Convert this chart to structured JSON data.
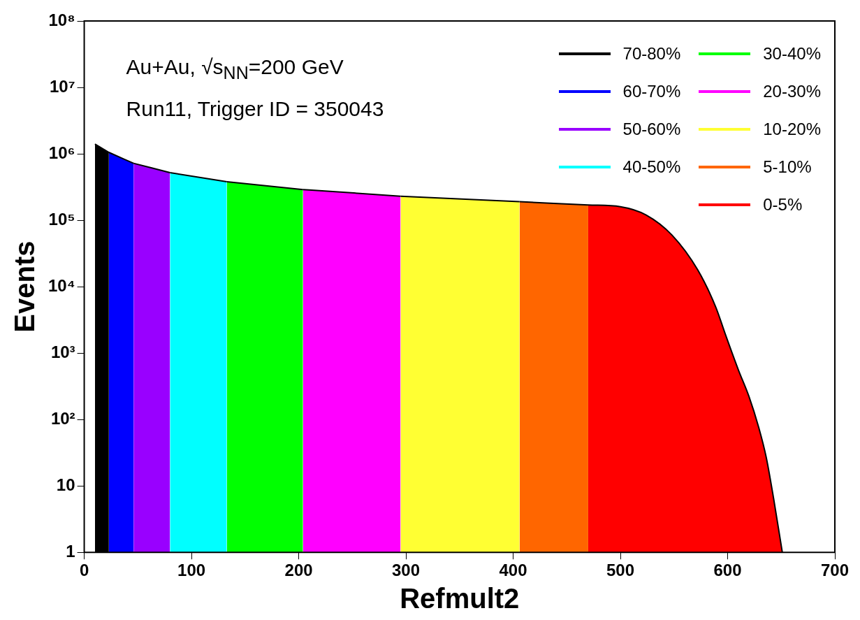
{
  "chart_data": {
    "type": "area",
    "xlabel": "Refmult2",
    "ylabel": "Events",
    "log": "y",
    "annotations": [
      "Au+Au, √s$_{NN}$=200 GeV",
      "Run11, Trigger ID = 350043"
    ],
    "legend": "top right",
    "xlim": [
      0,
      700
    ],
    "xticks": [
      0,
      100,
      200,
      300,
      400,
      500,
      600,
      700
    ],
    "ylim": [
      1,
      100000000
    ],
    "yticks": [
      1,
      10,
      {
        "value": 100,
        "label": "10²"
      },
      {
        "value": 1000,
        "label": "10³"
      },
      {
        "value": 10000,
        "label": "10⁴"
      },
      {
        "value": 100000,
        "label": "10⁵"
      },
      {
        "value": 1000000,
        "label": "10⁶"
      },
      {
        "value": 10000000,
        "label": "10⁷"
      },
      {
        "value": 100000000,
        "label": "10⁸"
      }
    ],
    "series": [
      {
        "name": "70-80%",
        "color": "#000000",
        "x": [
          10,
          23
        ],
        "values": [
          1400000,
          1050000
        ]
      },
      {
        "name": "60-70%",
        "color": "#0000ff",
        "x": [
          23,
          46
        ],
        "values": [
          1050000,
          720000
        ]
      },
      {
        "name": "50-60%",
        "color": "#9900ff",
        "x": [
          46,
          80
        ],
        "values": [
          720000,
          520000
        ]
      },
      {
        "name": "40-50%",
        "color": "#00ffff",
        "x": [
          80,
          133
        ],
        "values": [
          520000,
          380000
        ]
      },
      {
        "name": "30-40%",
        "color": "#00ff00",
        "x": [
          133,
          204
        ],
        "values": [
          380000,
          290000
        ]
      },
      {
        "name": "20-30%",
        "color": "#ff00ff",
        "x": [
          204,
          295
        ],
        "values": [
          290000,
          230000
        ]
      },
      {
        "name": "10-20%",
        "color": "#ffff33",
        "x": [
          295,
          406
        ],
        "values": [
          230000,
          190000
        ]
      },
      {
        "name": "5-10%",
        "color": "#ff6600",
        "x": [
          406,
          470
        ],
        "values": [
          190000,
          170000
        ]
      },
      {
        "name": "0-5%",
        "color": "#ff0000",
        "x": [
          470,
          500,
          524,
          548,
          572,
          589,
          598,
          610,
          620,
          629,
          636,
          643,
          651
        ],
        "values": [
          170000,
          160000,
          120000,
          60000,
          18000,
          4900,
          1900,
          560,
          220,
          76,
          27,
          6.3,
          1
        ]
      }
    ]
  }
}
